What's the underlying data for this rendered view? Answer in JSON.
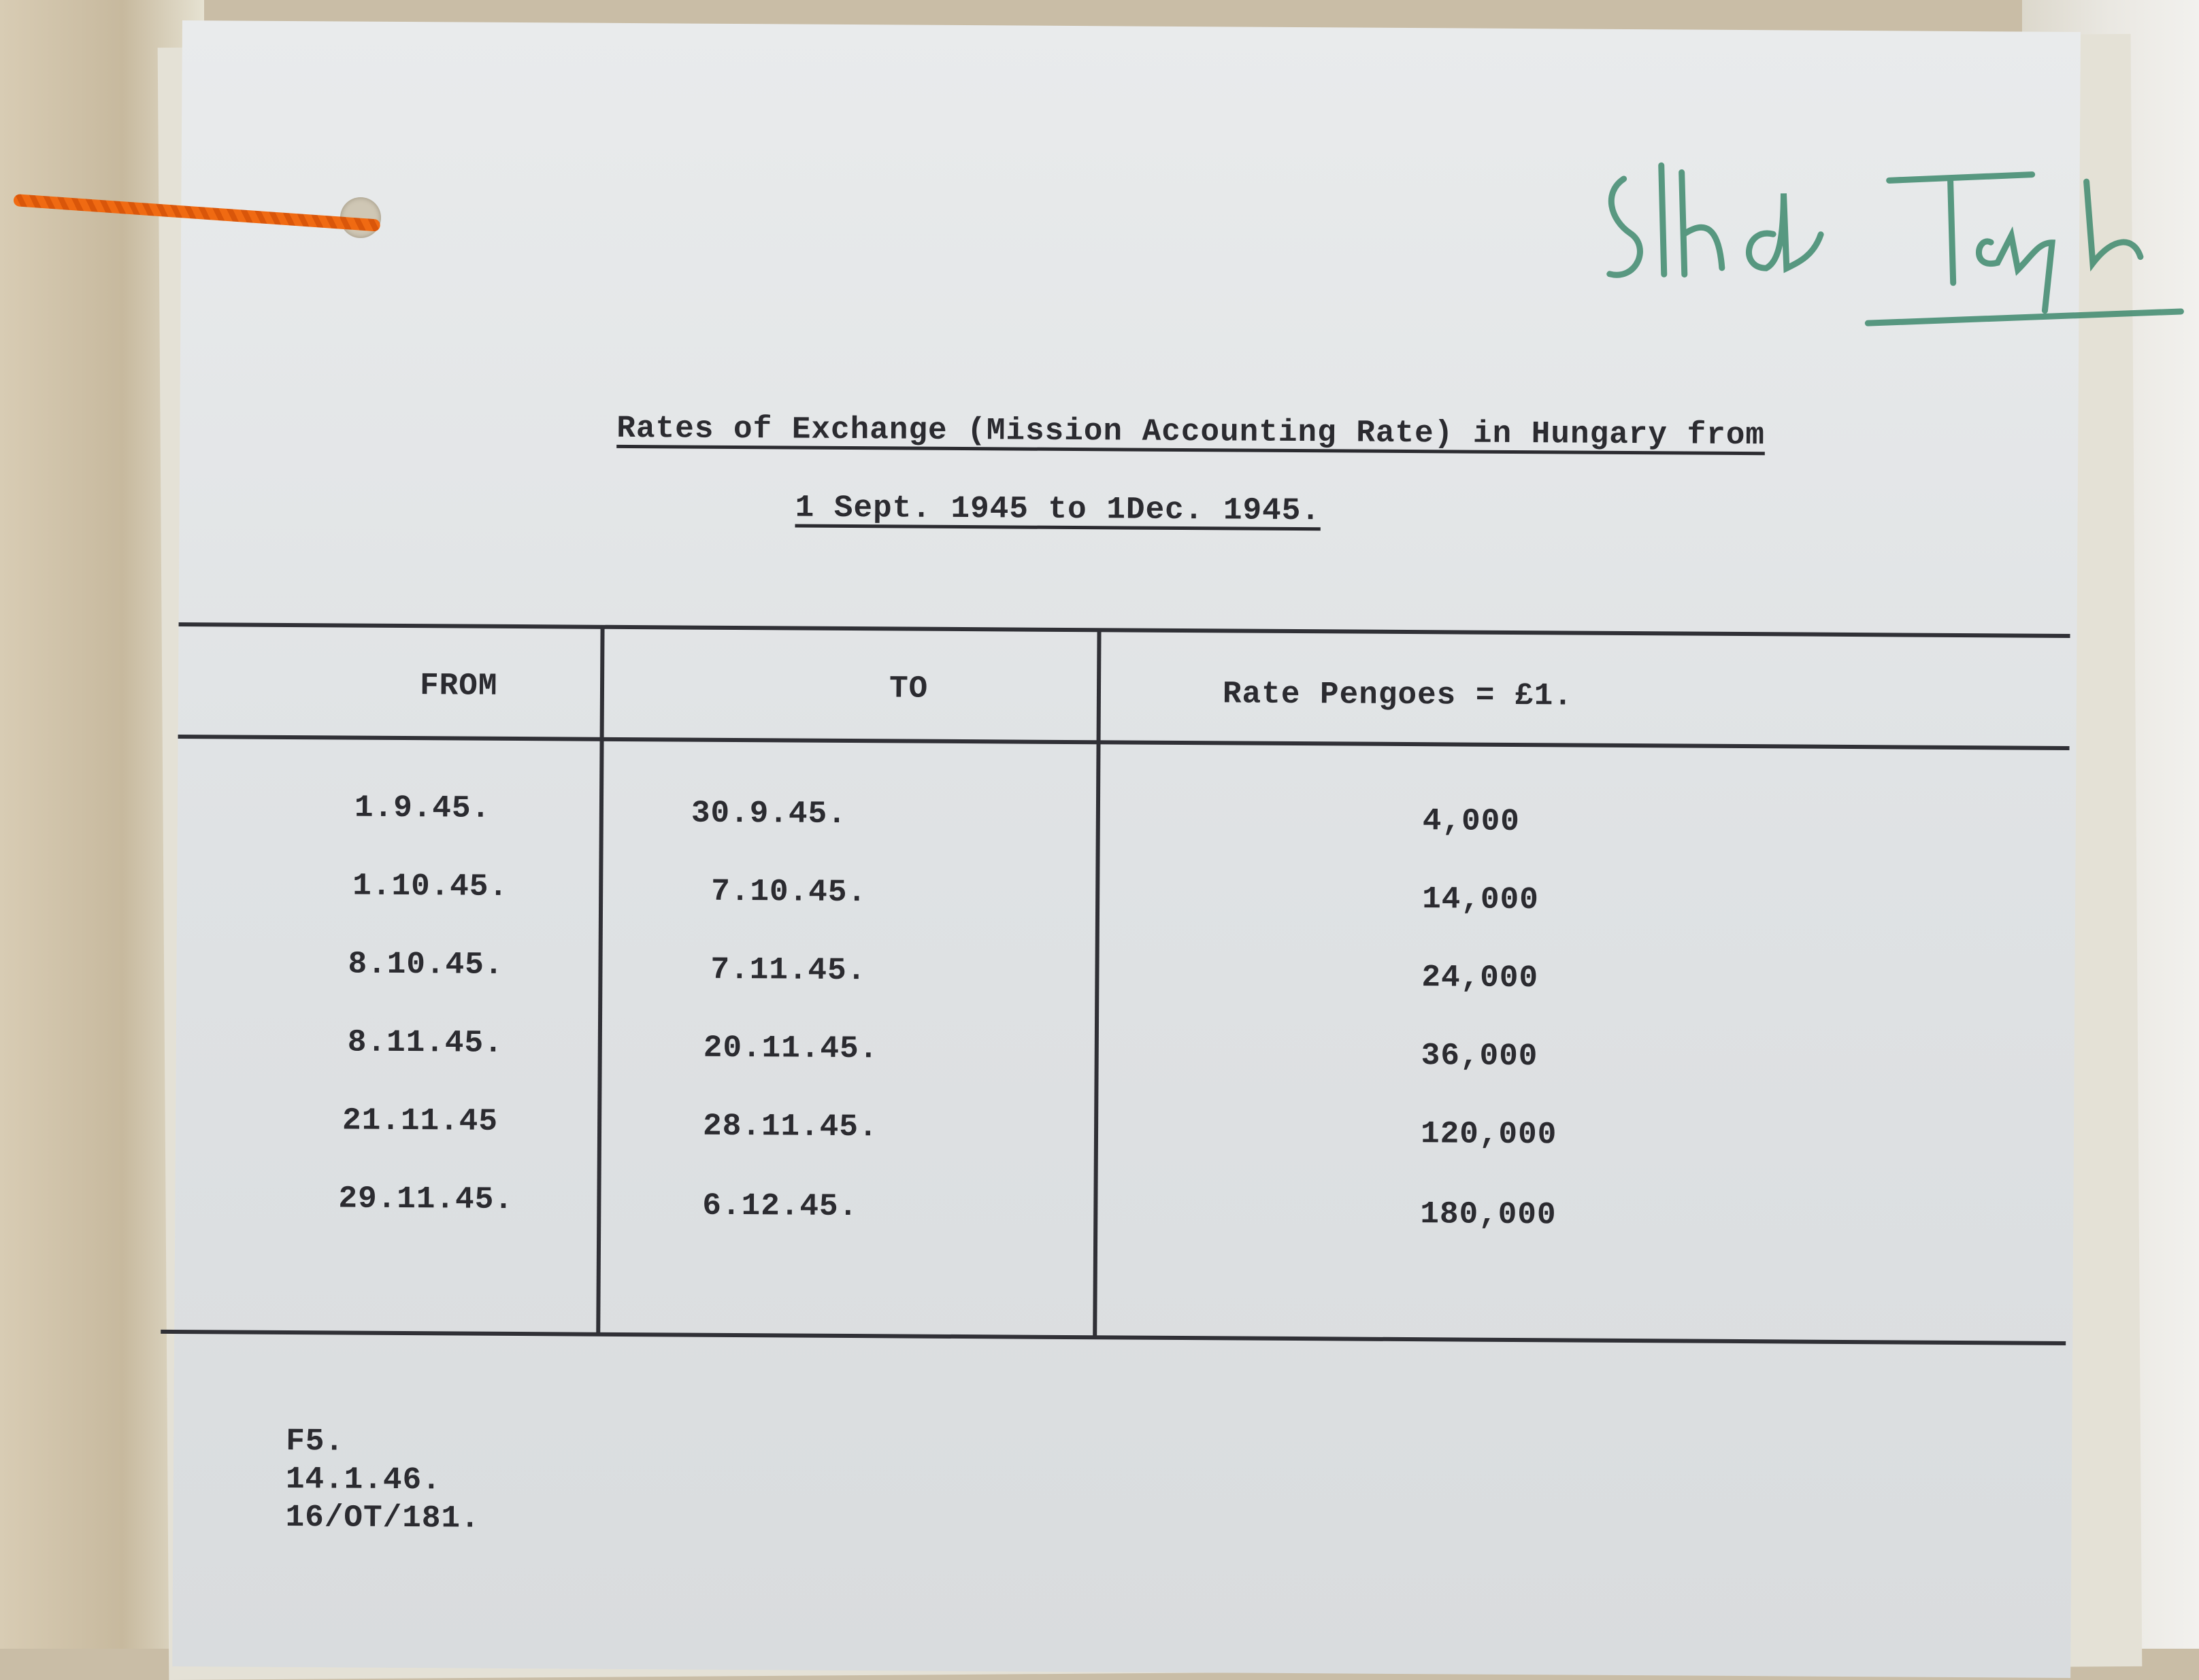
{
  "document": {
    "title_line1": "Rates of Exchange (Mission Accounting Rate) in Hungary from",
    "title_line2": "1 Sept. 1945 to 1Dec. 1945.",
    "signature": "Slhdr Taylor",
    "signature_color": "#3f8a6e",
    "table": {
      "headers": [
        "FROM",
        "TO",
        "Rate Pengoes = £1."
      ],
      "rows": [
        {
          "from": "1.9.45.",
          "to": "30.9.45.",
          "rate": "4,000"
        },
        {
          "from": "1.10.45.",
          "to": "7.10.45.",
          "rate": "14,000"
        },
        {
          "from": "8.10.45.",
          "to": "7.11.45.",
          "rate": "24,000"
        },
        {
          "from": "8.11.45.",
          "to": "20.11.45.",
          "rate": "36,000"
        },
        {
          "from": "21.11.45",
          "to": "28.11.45.",
          "rate": "120,000"
        },
        {
          "from": "29.11.45.",
          "to": "6.12.45.",
          "rate": "180,000"
        }
      ]
    },
    "footer": [
      "F5.",
      "14.1.46.",
      "16/OT/181."
    ]
  }
}
